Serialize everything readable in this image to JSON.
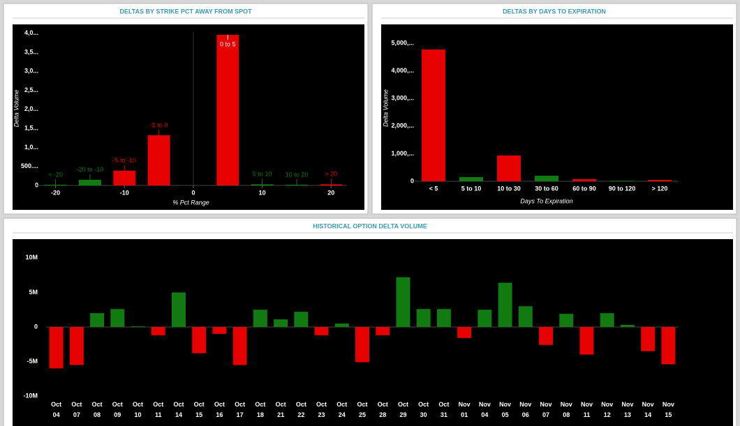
{
  "chart_data": [
    {
      "type": "bar",
      "title": "DELTAS BY STRIKE PCT AWAY FROM SPOT",
      "x_label": "% Pct Range",
      "y_label": "Delta Volume",
      "categories": [
        "< -20",
        "-20 to -10",
        "-5 to -10",
        "-5 to 0",
        "0 to 5",
        "5 to 10",
        "10 to 20",
        "> 20"
      ],
      "x": [
        -20,
        -15,
        -10,
        -5,
        5,
        10,
        15,
        20
      ],
      "values": [
        20,
        150,
        390,
        1320,
        3960,
        30,
        20,
        30
      ],
      "colors": [
        "#117a11",
        "#117a11",
        "#e60000",
        "#e60000",
        "#e60000",
        "#117a11",
        "#117a11",
        "#e60000"
      ],
      "xlim": [
        -23,
        22.3
      ],
      "xticks": [
        -20,
        -10,
        0,
        10,
        20
      ],
      "ylim": [
        0,
        4050
      ],
      "yticks": [
        0,
        {
          "value": 500,
          "label": "500...."
        },
        {
          "value": 1000,
          "label": "1,0..."
        },
        {
          "value": 1500,
          "label": "1,5..."
        },
        {
          "value": 2000,
          "label": "2,0..."
        },
        {
          "value": 2500,
          "label": "2,5..."
        },
        {
          "value": 3000,
          "label": "3,0..."
        },
        {
          "value": 3500,
          "label": "3,5..."
        },
        {
          "value": 4000,
          "label": "4,0..."
        }
      ],
      "data_labels": true
    },
    {
      "type": "bar",
      "title": "DELTAS BY DAYS TO EXPIRATION",
      "x_label": "Days To Expiration",
      "y_label": "Delta Volume",
      "categories": [
        "< 5",
        "5 to 10",
        "10 to 30",
        "30 to 60",
        "60 to 90",
        "90 to 120",
        "> 120"
      ],
      "values": [
        4770,
        150,
        935,
        200,
        75,
        20,
        50
      ],
      "colors": [
        "#e60000",
        "#117a11",
        "#e60000",
        "#117a11",
        "#e60000",
        "#117a11",
        "#e60000"
      ],
      "ylim": [
        0,
        5300
      ],
      "yticks": [
        0,
        {
          "value": 1000,
          "label": "1,000,..."
        },
        {
          "value": 2000,
          "label": "2,000,..."
        },
        {
          "value": 3000,
          "label": "3,000,..."
        },
        {
          "value": 4000,
          "label": "4,000,..."
        },
        {
          "value": 5000,
          "label": "5,000,..."
        }
      ]
    },
    {
      "type": "bar",
      "title": "HISTORICAL OPTION DELTA VOLUME",
      "categories": [
        "Oct 04",
        "Oct 07",
        "Oct 08",
        "Oct 09",
        "Oct 10",
        "Oct 11",
        "Oct 14",
        "Oct 15",
        "Oct 16",
        "Oct 17",
        "Oct 18",
        "Oct 21",
        "Oct 22",
        "Oct 23",
        "Oct 24",
        "Oct 25",
        "Oct 28",
        "Oct 29",
        "Oct 30",
        "Oct 31",
        "Nov 01",
        "Nov 04",
        "Nov 05",
        "Nov 06",
        "Nov 07",
        "Nov 08",
        "Nov 11",
        "Nov 12",
        "Nov 13",
        "Nov 14",
        "Nov 15"
      ],
      "values": [
        -6000000,
        -5500000,
        2000000,
        2600000,
        100000,
        -1200000,
        5000000,
        -3800000,
        -1000000,
        -5500000,
        2500000,
        1100000,
        2200000,
        -1200000,
        500000,
        -5100000,
        -1200000,
        7200000,
        2600000,
        2600000,
        -1600000,
        2500000,
        6400000,
        3000000,
        -2600000,
        1900000,
        -4000000,
        2000000,
        300000,
        -3500000,
        -5400000
      ],
      "positive_color": "#117a11",
      "negative_color": "#e60000",
      "ylim": [
        -10600000,
        11500000
      ],
      "yticks": [
        {
          "value": -10000000,
          "label": "-10M"
        },
        {
          "value": -5000000,
          "label": "-5M"
        },
        0,
        {
          "value": 5000000,
          "label": "5M"
        },
        {
          "value": 10000000,
          "label": "10M"
        }
      ]
    }
  ]
}
